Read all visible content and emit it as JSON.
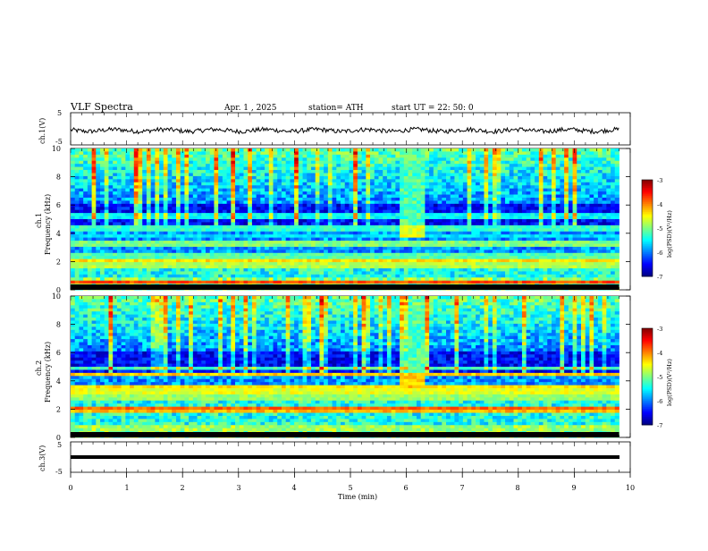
{
  "header": {
    "title": "VLF Spectra",
    "date": "Apr. 1 , 2025",
    "station": "station= ATH",
    "start_ut": "start UT = 22: 50: 0"
  },
  "chart_data": [
    {
      "type": "line",
      "name": "ch1-voltage",
      "ylabel": "ch.1(V)",
      "ylim": [
        -5,
        5
      ],
      "yticks": [
        "5",
        "-5"
      ],
      "x_range_min": [
        0,
        9.8
      ],
      "description_level": -0.5
    },
    {
      "type": "heatmap",
      "name": "ch1-spectrogram",
      "ylabel_line1": "ch.1",
      "ylabel_line2": "Frequency (kHz)",
      "ylim": [
        0,
        10
      ],
      "yticks": [
        "0",
        "2",
        "4",
        "6",
        "8",
        "10"
      ],
      "colorbar": {
        "label": "log(PSD)(V²/Hz)",
        "range": [
          -7,
          -3
        ],
        "ticks": [
          "-3",
          "-4",
          "-5",
          "-6",
          "-7"
        ]
      },
      "bands_khz": [
        {
          "f": 0.5,
          "level": -3.8
        },
        {
          "f": 1.7,
          "level": -4.8
        },
        {
          "f": 2.1,
          "level": -4.4
        },
        {
          "f": 2.4,
          "level": -5.2
        },
        {
          "f": 3.3,
          "level": -5.0
        },
        {
          "f": 3.8,
          "level": -5.6
        },
        {
          "f": 4.3,
          "level": -5.3
        },
        {
          "f": 5.2,
          "level": -5.5
        }
      ],
      "burst": {
        "t_min": [
          5.9,
          6.3
        ],
        "f_khz": [
          3.6,
          4.6
        ],
        "level": -4.6
      }
    },
    {
      "type": "heatmap",
      "name": "ch2-spectrogram",
      "ylabel_line1": "ch.2",
      "ylabel_line2": "Frequency (kHz)",
      "ylim": [
        0,
        10
      ],
      "yticks": [
        "0",
        "2",
        "4",
        "6",
        "8",
        "10"
      ],
      "colorbar": {
        "label": "log(PSD)(V²/Hz)",
        "range": [
          -7,
          -3
        ],
        "ticks": [
          "-3",
          "-4",
          "-5",
          "-6",
          "-7"
        ]
      },
      "bands_khz": [
        {
          "f": 0.7,
          "level": -5.0
        },
        {
          "f": 1.9,
          "level": -4.2
        },
        {
          "f": 2.1,
          "level": -3.9
        },
        {
          "f": 2.8,
          "level": -4.9
        },
        {
          "f": 3.3,
          "level": -4.6
        },
        {
          "f": 3.6,
          "level": -4.4
        },
        {
          "f": 4.5,
          "level": -4.3
        },
        {
          "f": 4.9,
          "level": -5.2
        }
      ],
      "burst": {
        "t_min": [
          5.9,
          6.3
        ],
        "f_khz": [
          3.4,
          4.4
        ],
        "level": -4.3
      }
    },
    {
      "type": "line",
      "name": "ch3-voltage",
      "ylabel": "ch.3(V)",
      "ylim": [
        -5,
        5
      ],
      "yticks": [
        "5",
        "-5"
      ],
      "description_level": -2
    }
  ],
  "x_axis": {
    "label": "Time (min)",
    "range": [
      0,
      10
    ],
    "ticks": [
      "0",
      "1",
      "2",
      "3",
      "4",
      "5",
      "6",
      "7",
      "8",
      "9",
      "10"
    ]
  }
}
